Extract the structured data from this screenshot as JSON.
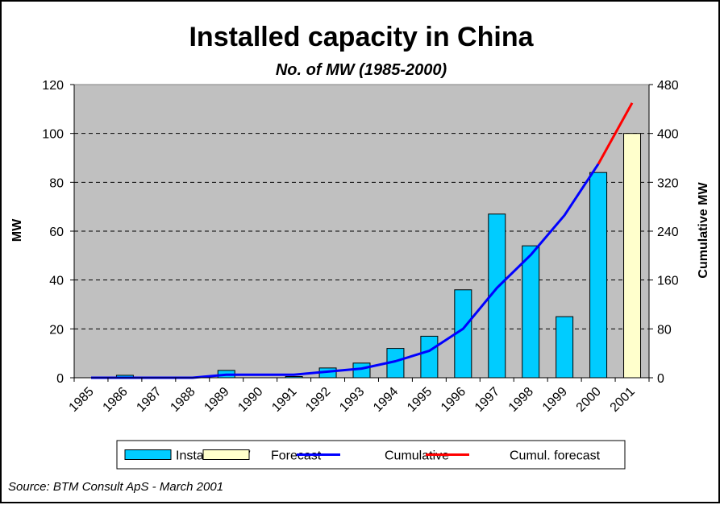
{
  "chart_data": {
    "type": "bar",
    "title": "Installed capacity in China",
    "subtitle": "No. of MW (1985-2000)",
    "ylabel": "MW",
    "y2label": "Cumulative MW",
    "xlabel": "",
    "categories": [
      "1985",
      "1986",
      "1987",
      "1988",
      "1989",
      "1990",
      "1991",
      "1992",
      "1993",
      "1994",
      "1995",
      "1996",
      "1997",
      "1998",
      "1999",
      "2000",
      "2001"
    ],
    "ylim": [
      0,
      120
    ],
    "yticks": [
      0,
      20,
      40,
      60,
      80,
      100,
      120
    ],
    "y2lim": [
      0,
      480
    ],
    "y2ticks": [
      0,
      80,
      160,
      240,
      320,
      400,
      480
    ],
    "grid": "horizontal dashed",
    "background": "#c0c0c0",
    "series": [
      {
        "name": "Installed MW",
        "type": "bar",
        "axis": "left",
        "color": "#00ccff",
        "values": [
          0,
          1,
          0,
          0,
          3,
          0,
          0.5,
          4,
          6,
          12,
          17,
          36,
          67,
          54,
          25,
          84,
          null
        ]
      },
      {
        "name": "Forecast",
        "type": "bar",
        "axis": "left",
        "color": "#ffffcc",
        "values": [
          null,
          null,
          null,
          null,
          null,
          null,
          null,
          null,
          null,
          null,
          null,
          null,
          null,
          null,
          null,
          null,
          100
        ]
      },
      {
        "name": "Cumulative",
        "type": "line",
        "axis": "right",
        "color": "#0000ff",
        "values": [
          0,
          0,
          0,
          0,
          5,
          5,
          5,
          10,
          15,
          27,
          44,
          80,
          147,
          201,
          266,
          350,
          null
        ]
      },
      {
        "name": "Cumul. forecast",
        "type": "line",
        "axis": "right",
        "color": "#ff0000",
        "values": [
          null,
          null,
          null,
          null,
          null,
          null,
          null,
          null,
          null,
          null,
          null,
          null,
          null,
          null,
          null,
          350,
          450
        ]
      }
    ],
    "legend": {
      "position": "bottom",
      "items": [
        "Installed MW",
        "Forecast",
        "Cumulative",
        "Cumul. forecast"
      ]
    },
    "source": "Source: BTM Consult ApS - March 2001"
  }
}
